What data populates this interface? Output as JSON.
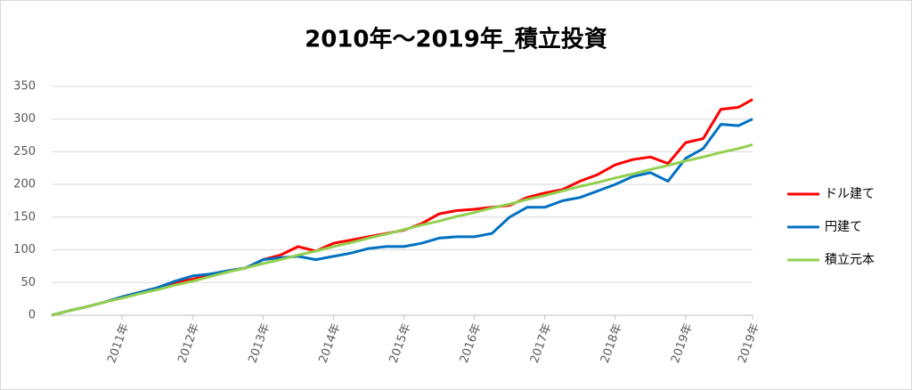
{
  "chart_data": {
    "type": "line",
    "title": "2010年～2019年_積立投資",
    "x": [
      2010,
      2010.25,
      2010.5,
      2010.75,
      2011,
      2011.25,
      2011.5,
      2011.75,
      2012,
      2012.25,
      2012.5,
      2012.75,
      2013,
      2013.25,
      2013.5,
      2013.75,
      2014,
      2014.25,
      2014.5,
      2014.75,
      2015,
      2015.25,
      2015.5,
      2015.75,
      2016,
      2016.25,
      2016.5,
      2016.75,
      2017,
      2017.25,
      2017.5,
      2017.75,
      2018,
      2018.25,
      2018.5,
      2018.75,
      2019,
      2019.25,
      2019.5,
      2019.75,
      2019.95
    ],
    "series": [
      {
        "name": "ドル建て",
        "color": "#ff0000",
        "values": [
          0,
          7,
          13,
          20,
          28,
          35,
          42,
          50,
          55,
          62,
          68,
          72,
          85,
          92,
          105,
          98,
          110,
          115,
          120,
          125,
          130,
          140,
          155,
          160,
          162,
          165,
          168,
          180,
          187,
          192,
          205,
          215,
          230,
          238,
          242,
          232,
          264,
          270,
          315,
          318,
          330
        ]
      },
      {
        "name": "円建て",
        "color": "#0070c0",
        "values": [
          0,
          7,
          13,
          20,
          28,
          35,
          42,
          52,
          60,
          63,
          68,
          72,
          85,
          88,
          90,
          85,
          90,
          95,
          102,
          105,
          105,
          110,
          118,
          120,
          120,
          125,
          150,
          165,
          165,
          175,
          180,
          190,
          200,
          212,
          218,
          205,
          240,
          255,
          292,
          290,
          300
        ]
      },
      {
        "name": "積立元本",
        "color": "#92d050",
        "values": [
          0,
          7,
          13,
          20,
          26,
          33,
          39,
          46,
          52,
          59,
          66,
          72,
          79,
          85,
          92,
          98,
          105,
          111,
          118,
          124,
          131,
          138,
          144,
          151,
          157,
          164,
          170,
          177,
          183,
          190,
          197,
          203,
          210,
          216,
          223,
          229,
          236,
          242,
          249,
          255,
          261
        ]
      }
    ],
    "xlim": [
      2010,
      2019.95
    ],
    "xticks": [
      {
        "value": 2011,
        "label": "2011年"
      },
      {
        "value": 2012,
        "label": "2012年"
      },
      {
        "value": 2013,
        "label": "2013年"
      },
      {
        "value": 2014,
        "label": "2014年"
      },
      {
        "value": 2015,
        "label": "2015年"
      },
      {
        "value": 2016,
        "label": "2016年"
      },
      {
        "value": 2017,
        "label": "2017年"
      },
      {
        "value": 2018,
        "label": "2018年"
      },
      {
        "value": 2019,
        "label": "2019年"
      },
      {
        "value": 2019.95,
        "label": "2019年"
      }
    ],
    "ylim": [
      0,
      350
    ],
    "yticks": [
      0,
      50,
      100,
      150,
      200,
      250,
      300,
      350
    ],
    "grid": true,
    "legend": "right"
  }
}
